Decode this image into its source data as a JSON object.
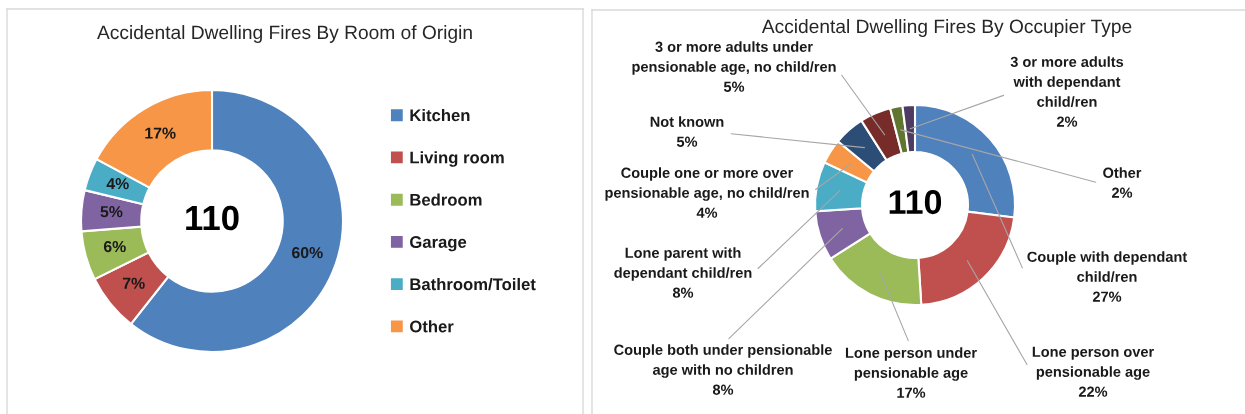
{
  "chart_data": [
    {
      "type": "donut",
      "title": "Accidental Dwelling Fires By Room of Origin",
      "categories": [
        "Kitchen",
        "Living room",
        "Bedroom",
        "Garage",
        "Bathroom/Toilet",
        "Other"
      ],
      "values": [
        60,
        7,
        6,
        5,
        4,
        17
      ],
      "colors": [
        "#4f81bd",
        "#c0504d",
        "#9bbb59",
        "#8064a2",
        "#4bacc6",
        "#f79646"
      ],
      "value_labels": [
        "60%",
        "7%",
        "6%",
        "5%",
        "4%",
        "17%"
      ],
      "annotations": [
        "110"
      ],
      "legend": "right"
    },
    {
      "type": "donut",
      "title": "Accidental Dwelling Fires By Occupier Type",
      "categories": [
        "Couple with dependant\nchild/ren",
        "Lone person over\npensionable age",
        "Lone person under\npensionable age",
        "Couple both under pensionable\nage with no children",
        "Lone parent with\ndependant child/ren",
        "Couple one or more over\npensionable age, no child/ren",
        "Not known",
        "3 or more adults under\npensionable age, no child/ren",
        "Other",
        "3 or more adults\nwith dependant\nchild/ren"
      ],
      "values": [
        27,
        22,
        17,
        8,
        8,
        4,
        5,
        5,
        2,
        2
      ],
      "colors": [
        "#4f81bd",
        "#c0504d",
        "#9bbb59",
        "#8064a2",
        "#4bacc6",
        "#f79646",
        "#2c4d75",
        "#772c2a",
        "#5f7530",
        "#4d3b62"
      ],
      "value_labels": [
        "27%",
        "22%",
        "17%",
        "8%",
        "8%",
        "4%",
        "5%",
        "5%",
        "2%",
        "2%"
      ],
      "annotations": [
        "110"
      ]
    }
  ]
}
